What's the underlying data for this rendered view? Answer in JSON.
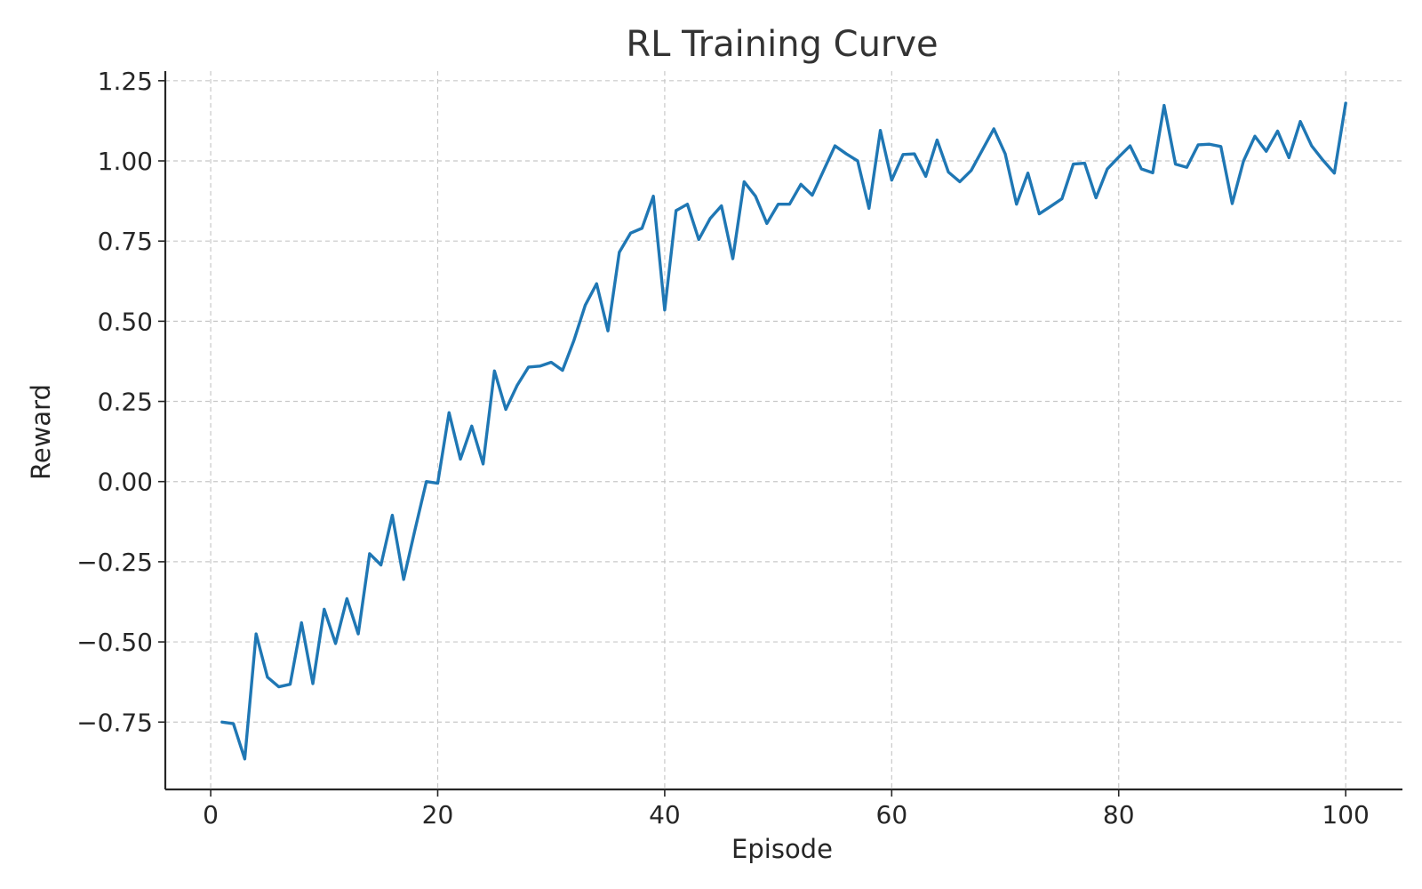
{
  "chart_data": {
    "type": "line",
    "title": "RL Training Curve",
    "xlabel": "Episode",
    "ylabel": "Reward",
    "xlim": [
      -4,
      105
    ],
    "ylim": [
      -0.96,
      1.28
    ],
    "x_ticks": [
      0,
      20,
      40,
      60,
      80,
      100
    ],
    "y_ticks": [
      -0.75,
      -0.5,
      -0.25,
      0.0,
      0.25,
      0.5,
      0.75,
      1.0,
      1.25
    ],
    "x_tick_labels": [
      "0",
      "20",
      "40",
      "60",
      "80",
      "100"
    ],
    "y_tick_labels": [
      "−0.75",
      "−0.50",
      "−0.25",
      "0.00",
      "0.25",
      "0.50",
      "0.75",
      "1.00",
      "1.25"
    ],
    "grid": true,
    "colors": {
      "series": "#1f77b4",
      "axis": "#262626",
      "grid": "#c8c8c8",
      "title": "#333333"
    },
    "series": [
      {
        "x": [
          1,
          2,
          3,
          4,
          5,
          6,
          7,
          8,
          9,
          10,
          11,
          12,
          13,
          14,
          15,
          16,
          17,
          18,
          19,
          20,
          21,
          22,
          23,
          24,
          25,
          26,
          27,
          28,
          29,
          30,
          31,
          32,
          33,
          34,
          35,
          36,
          37,
          38,
          39,
          40,
          41,
          42,
          43,
          44,
          45,
          46,
          47,
          48,
          49,
          50,
          51,
          52,
          53,
          54,
          55,
          56,
          57,
          58,
          59,
          60,
          61,
          62,
          63,
          64,
          65,
          66,
          67,
          68,
          69,
          70,
          71,
          72,
          73,
          74,
          75,
          76,
          77,
          78,
          79,
          80,
          81,
          82,
          83,
          84,
          85,
          86,
          87,
          88,
          89,
          90,
          91,
          92,
          93,
          94,
          95,
          96,
          97,
          98,
          99,
          100
        ],
        "values": [
          -0.75,
          -0.755,
          -0.865,
          -0.475,
          -0.61,
          -0.64,
          -0.632,
          -0.44,
          -0.63,
          -0.398,
          -0.505,
          -0.365,
          -0.475,
          -0.225,
          -0.26,
          -0.105,
          -0.305,
          -0.15,
          0.0,
          -0.005,
          0.215,
          0.07,
          0.173,
          0.055,
          0.345,
          0.225,
          0.3,
          0.357,
          0.36,
          0.372,
          0.347,
          0.44,
          0.55,
          0.617,
          0.47,
          0.715,
          0.775,
          0.79,
          0.89,
          0.535,
          0.845,
          0.865,
          0.755,
          0.82,
          0.86,
          0.695,
          0.935,
          0.89,
          0.805,
          0.865,
          0.865,
          0.927,
          0.893,
          0.97,
          1.047,
          1.022,
          1.0,
          0.852,
          1.095,
          0.94,
          1.02,
          1.022,
          0.952,
          1.065,
          0.965,
          0.935,
          0.97,
          1.035,
          1.1,
          1.022,
          0.865,
          0.962,
          0.835,
          0.858,
          0.882,
          0.99,
          0.993,
          0.885,
          0.975,
          1.012,
          1.047,
          0.975,
          0.963,
          1.173,
          0.99,
          0.98,
          1.05,
          1.052,
          1.045,
          0.867,
          1.0,
          1.077,
          1.03,
          1.093,
          1.01,
          1.123,
          1.047,
          1.002,
          0.962,
          1.18
        ]
      }
    ]
  }
}
